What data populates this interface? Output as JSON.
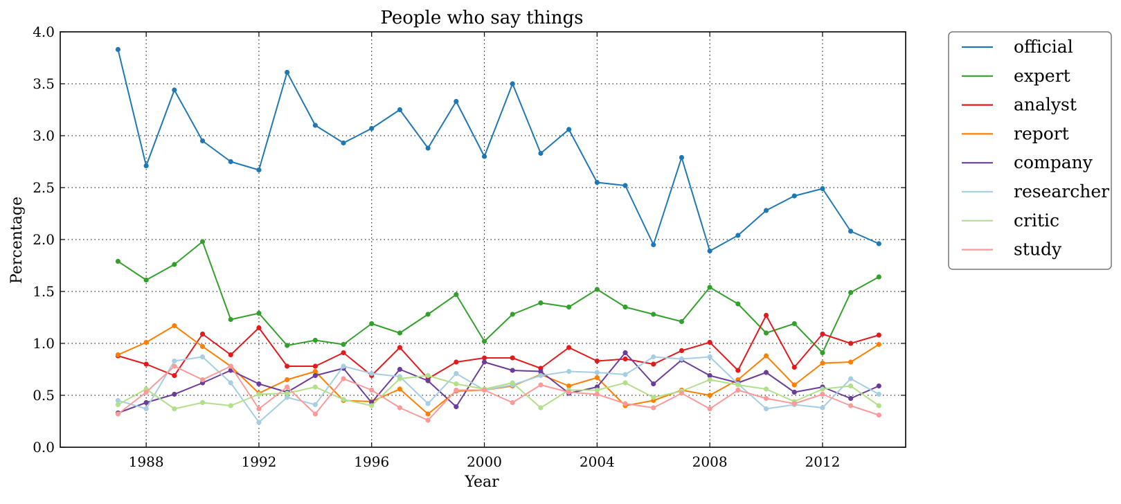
{
  "chart_data": {
    "type": "line",
    "title": "People who say things",
    "xlabel": "Year",
    "ylabel": "Percentage",
    "xlim": [
      1984.9,
      1914.9
    ],
    "xlim_note": "",
    "ylim": [
      0.0,
      4.0
    ],
    "xticks": [
      1988,
      1992,
      1996,
      2000,
      2004,
      2008,
      2012
    ],
    "yticks": [
      "0.0",
      "0.5",
      "1.0",
      "1.5",
      "2.0",
      "2.5",
      "3.0",
      "3.5",
      "4.0"
    ],
    "grid": true,
    "legend_position": "outside-right-top",
    "x": [
      1987,
      1988,
      1989,
      1990,
      1991,
      1992,
      1993,
      1994,
      1995,
      1996,
      1997,
      1998,
      1999,
      2000,
      2001,
      2002,
      2003,
      2004,
      2005,
      2006,
      2007,
      2008,
      2009,
      2010,
      2011,
      2012,
      2013,
      2014
    ],
    "series": [
      {
        "name": "official",
        "color": "#1f78b4",
        "values": [
          3.83,
          2.71,
          3.44,
          2.95,
          2.75,
          2.67,
          3.61,
          3.1,
          2.93,
          3.07,
          3.25,
          2.88,
          3.33,
          2.8,
          3.5,
          2.83,
          3.06,
          2.55,
          2.52,
          1.95,
          2.79,
          1.89,
          2.04,
          2.28,
          2.42,
          2.49,
          2.08,
          1.96
        ]
      },
      {
        "name": "expert",
        "color": "#33a02c",
        "values": [
          1.79,
          1.61,
          1.76,
          1.98,
          1.23,
          1.29,
          0.98,
          1.03,
          0.99,
          1.19,
          1.1,
          1.28,
          1.47,
          1.02,
          1.28,
          1.39,
          1.35,
          1.52,
          1.35,
          1.28,
          1.21,
          1.54,
          1.38,
          1.1,
          1.19,
          0.91,
          1.49,
          1.64
        ]
      },
      {
        "name": "analyst",
        "color": "#e31a1c",
        "values": [
          0.88,
          0.8,
          0.69,
          1.09,
          0.89,
          1.15,
          0.78,
          0.78,
          0.91,
          0.69,
          0.96,
          0.66,
          0.82,
          0.86,
          0.86,
          0.76,
          0.96,
          0.83,
          0.85,
          0.8,
          0.93,
          1.01,
          0.74,
          1.27,
          0.77,
          1.09,
          1.0,
          1.08
        ]
      },
      {
        "name": "report",
        "color": "#ff7f00",
        "values": [
          0.89,
          1.01,
          1.17,
          0.97,
          0.78,
          0.52,
          0.65,
          0.73,
          0.45,
          0.44,
          0.56,
          0.32,
          0.54,
          0.55,
          0.59,
          0.7,
          0.59,
          0.67,
          0.4,
          0.45,
          0.55,
          0.5,
          0.65,
          0.88,
          0.6,
          0.81,
          0.82,
          0.99
        ]
      },
      {
        "name": "company",
        "color": "#6a3d9a",
        "values": [
          0.33,
          0.43,
          0.51,
          0.62,
          0.74,
          0.61,
          0.53,
          0.69,
          0.76,
          0.43,
          0.75,
          0.64,
          0.39,
          0.82,
          0.74,
          0.73,
          0.52,
          0.58,
          0.91,
          0.61,
          0.84,
          0.69,
          0.62,
          0.72,
          0.53,
          0.58,
          0.47,
          0.59
        ]
      },
      {
        "name": "researcher",
        "color": "#a6cee3",
        "values": [
          0.45,
          0.37,
          0.83,
          0.87,
          0.62,
          0.24,
          0.48,
          0.41,
          0.78,
          0.71,
          0.68,
          0.42,
          0.71,
          0.55,
          0.6,
          0.69,
          0.73,
          0.72,
          0.7,
          0.87,
          0.85,
          0.87,
          0.61,
          0.37,
          0.41,
          0.38,
          0.66,
          0.51
        ]
      },
      {
        "name": "critic",
        "color": "#b2df8a",
        "values": [
          0.41,
          0.56,
          0.37,
          0.43,
          0.4,
          0.51,
          0.52,
          0.58,
          0.46,
          0.4,
          0.66,
          0.69,
          0.61,
          0.56,
          0.62,
          0.38,
          0.55,
          0.55,
          0.62,
          0.48,
          0.54,
          0.65,
          0.6,
          0.56,
          0.44,
          0.56,
          0.59,
          0.4
        ]
      },
      {
        "name": "study",
        "color": "#fb9a99",
        "values": [
          0.32,
          0.53,
          0.78,
          0.65,
          0.78,
          0.37,
          0.58,
          0.32,
          0.66,
          0.55,
          0.38,
          0.26,
          0.55,
          0.55,
          0.43,
          0.6,
          0.53,
          0.51,
          0.42,
          0.38,
          0.52,
          0.37,
          0.55,
          0.47,
          0.42,
          0.51,
          0.4,
          0.31
        ]
      }
    ]
  }
}
